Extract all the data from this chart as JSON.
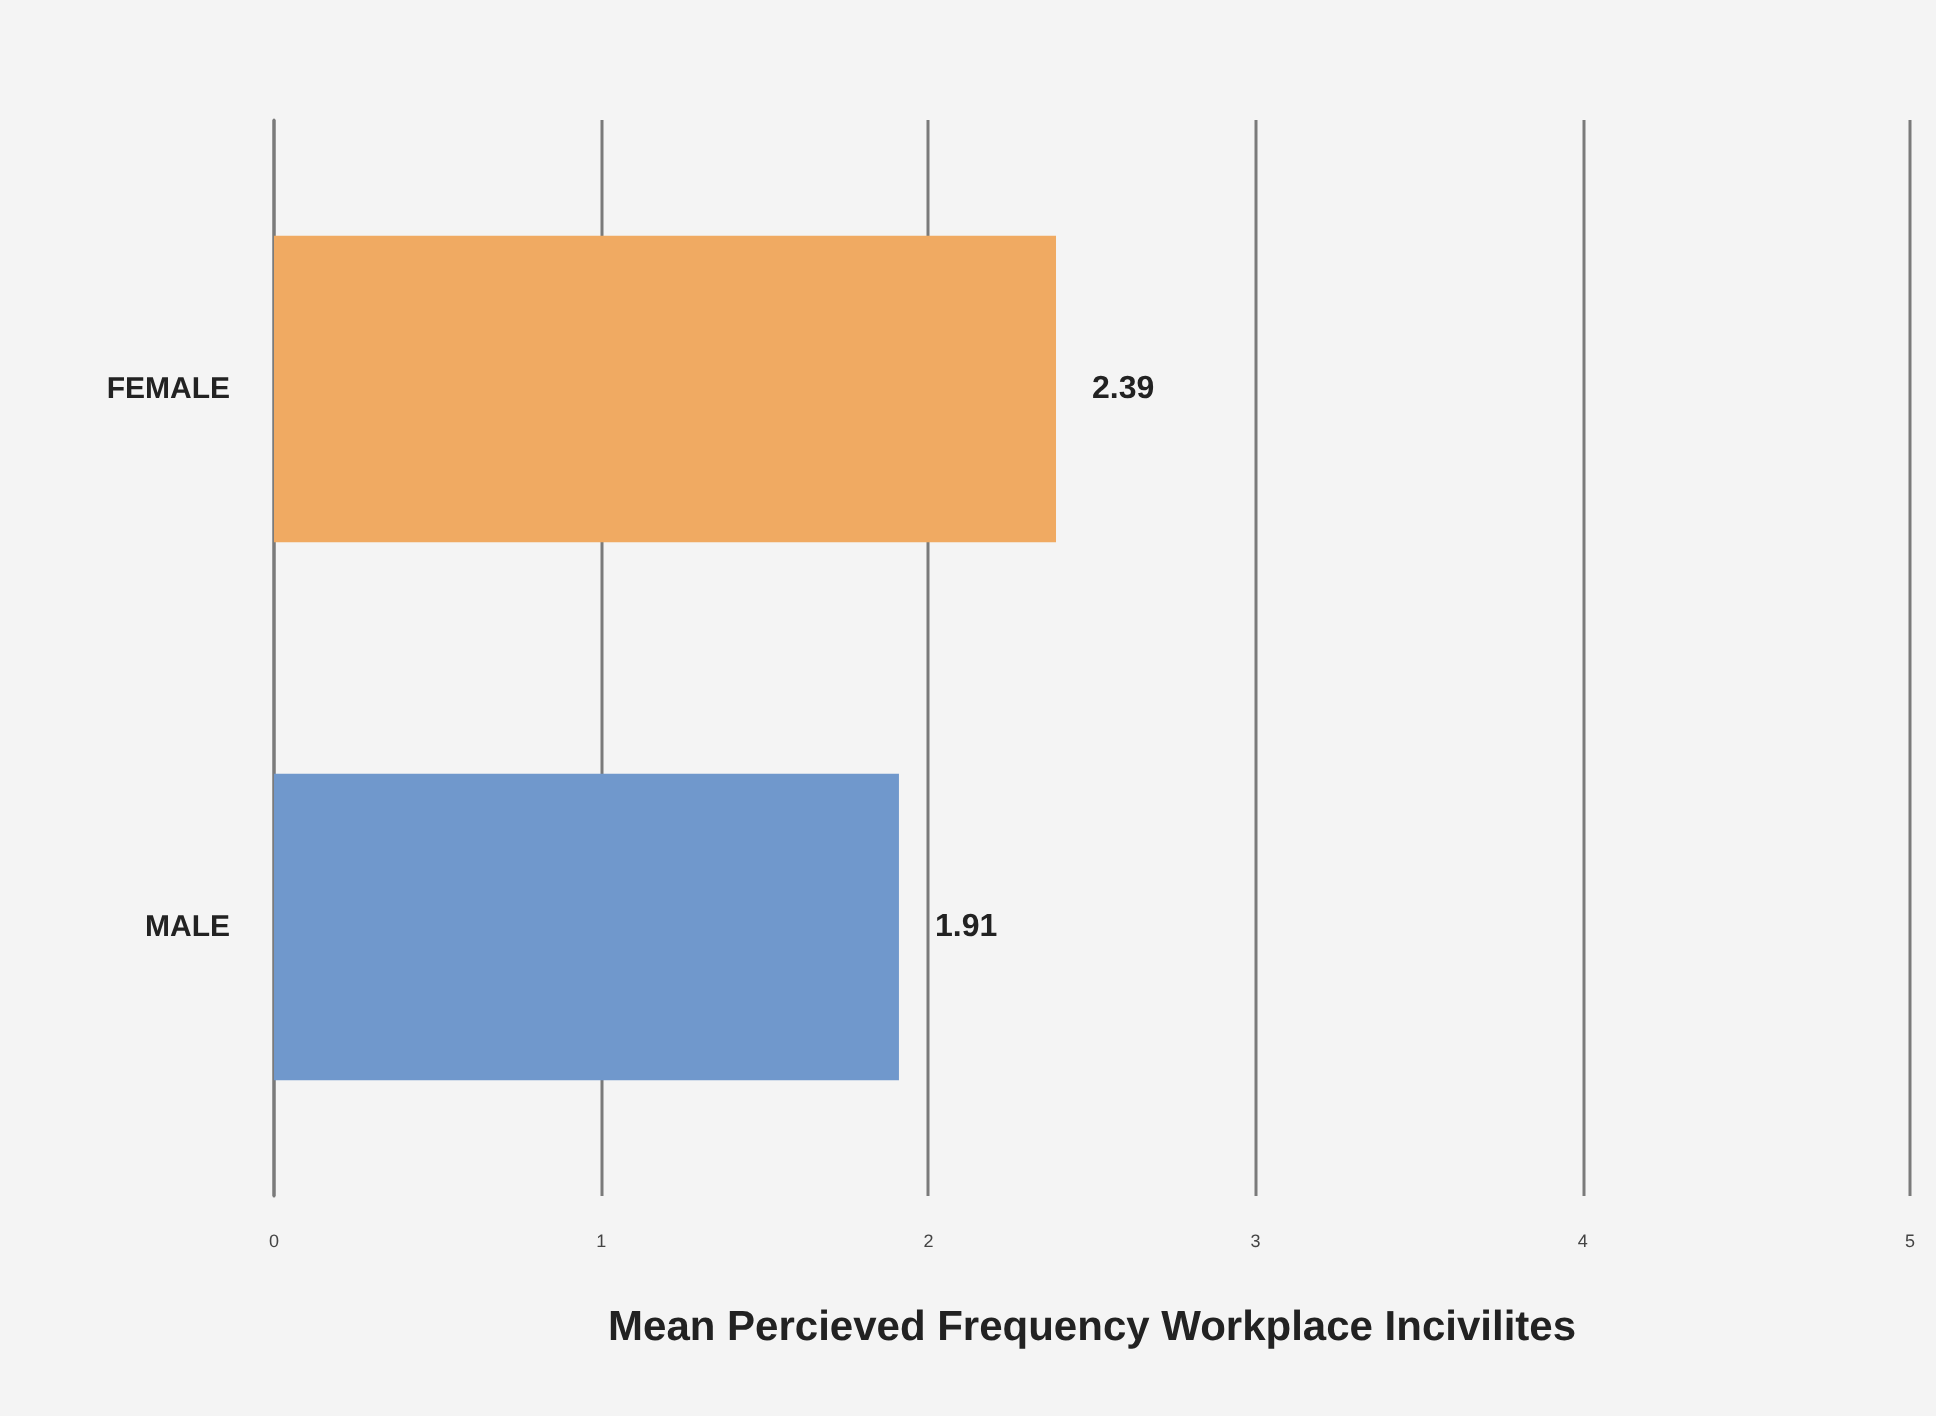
{
  "chart_data": {
    "type": "bar",
    "orientation": "horizontal",
    "xlabel": "Mean Percieved Frequency Workplace Incivilites",
    "categories": [
      "FEMALE",
      "MALE"
    ],
    "values": [
      2.39,
      1.91
    ],
    "colors": [
      "#f0aa62",
      "#7098cc"
    ],
    "xlim": [
      0,
      5
    ],
    "xticks": [
      0,
      1,
      2,
      3,
      4,
      5
    ],
    "grid": "x",
    "data_labels": true
  }
}
